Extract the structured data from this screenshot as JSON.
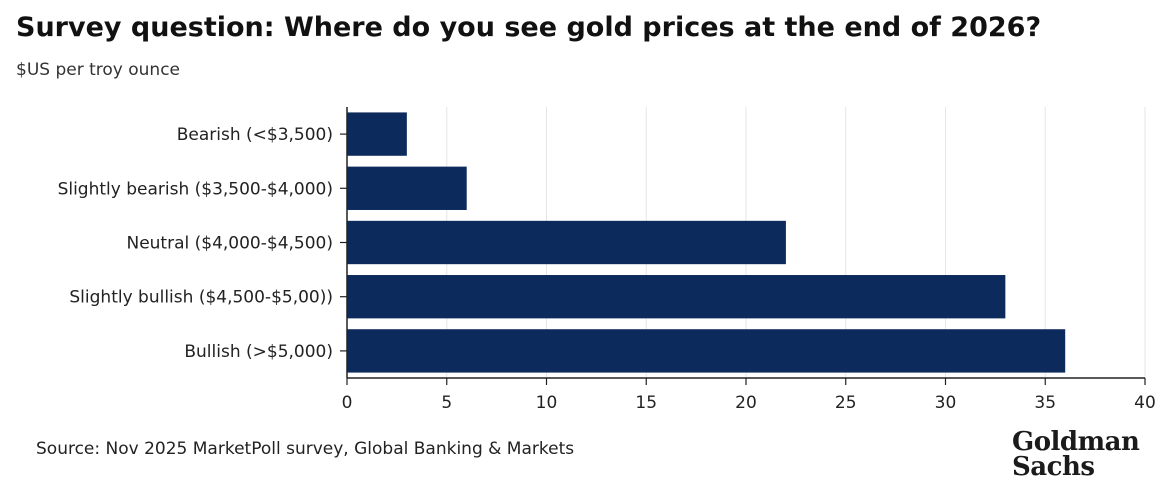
{
  "chart_data": {
    "type": "bar",
    "orientation": "horizontal",
    "title": "Survey question: Where do you see gold prices at the end of 2026?",
    "subtitle": "$US per troy ounce",
    "categories": [
      "Bearish (<$3,500)",
      "Slightly bearish ($3,500-$4,000)",
      "Neutral ($4,000-$4,500)",
      "Slightly bullish ($4,500-$5,00))",
      "Bullish (>$5,000)"
    ],
    "values": [
      3,
      6,
      22,
      33,
      36
    ],
    "xlim": [
      0,
      40
    ],
    "xticks": [
      0,
      5,
      10,
      15,
      20,
      25,
      30,
      35,
      40
    ],
    "grid": true,
    "bar_color": "#0d2a5c",
    "xlabel": "",
    "ylabel": ""
  },
  "source": "Source: Nov 2025 MarketPoll survey, Global Banking & Markets",
  "logo": {
    "line1": "Goldman",
    "line2": "Sachs"
  }
}
